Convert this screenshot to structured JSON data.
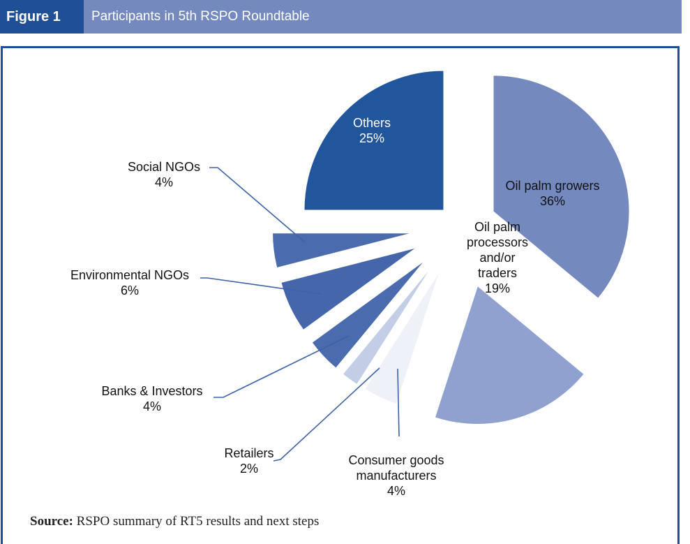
{
  "header": {
    "figure_label": "Figure 1",
    "title": "Participants in 5th RSPO Roundtable"
  },
  "source": {
    "label": "Source:",
    "text": "RSPO summary of RT5 results and next steps"
  },
  "colors": {
    "header_bar": "#7489bd",
    "figure_label_bg": "#1f4f96",
    "frame": "#1f4f96",
    "leader_line": "#3b62a6"
  },
  "chart_data": {
    "type": "pie",
    "style": "exploded",
    "slices": [
      {
        "key": "growers",
        "label_line1": "Oil palm growers",
        "label_line2": "",
        "label_line3": "",
        "percent_label": "36%",
        "value": 36,
        "color": "#7489bd"
      },
      {
        "key": "processors",
        "label_line1": "Oil palm",
        "label_line2": "processors",
        "label_line3": "and/or",
        "label_line4": "traders",
        "percent_label": "19%",
        "value": 19,
        "color": "#8fa1cf"
      },
      {
        "key": "consumer",
        "label_line1": "Consumer goods",
        "label_line2": "manufacturers",
        "percent_label": "4%",
        "value": 4,
        "color": "#eef1f8"
      },
      {
        "key": "retailers",
        "label_line1": "Retailers",
        "percent_label": "2%",
        "value": 2,
        "color": "#c2cde6"
      },
      {
        "key": "banks",
        "label_line1": "Banks & Investors",
        "percent_label": "4%",
        "value": 4,
        "color": "#4a6cae"
      },
      {
        "key": "env",
        "label_line1": "Environmental NGOs",
        "percent_label": "6%",
        "value": 6,
        "color": "#4566ab"
      },
      {
        "key": "social",
        "label_line1": "Social NGOs",
        "percent_label": "4%",
        "value": 4,
        "color": "#4a6cae"
      },
      {
        "key": "others",
        "label_line1": "Others",
        "percent_label": "25%",
        "value": 25,
        "color": "#21569c"
      }
    ]
  }
}
